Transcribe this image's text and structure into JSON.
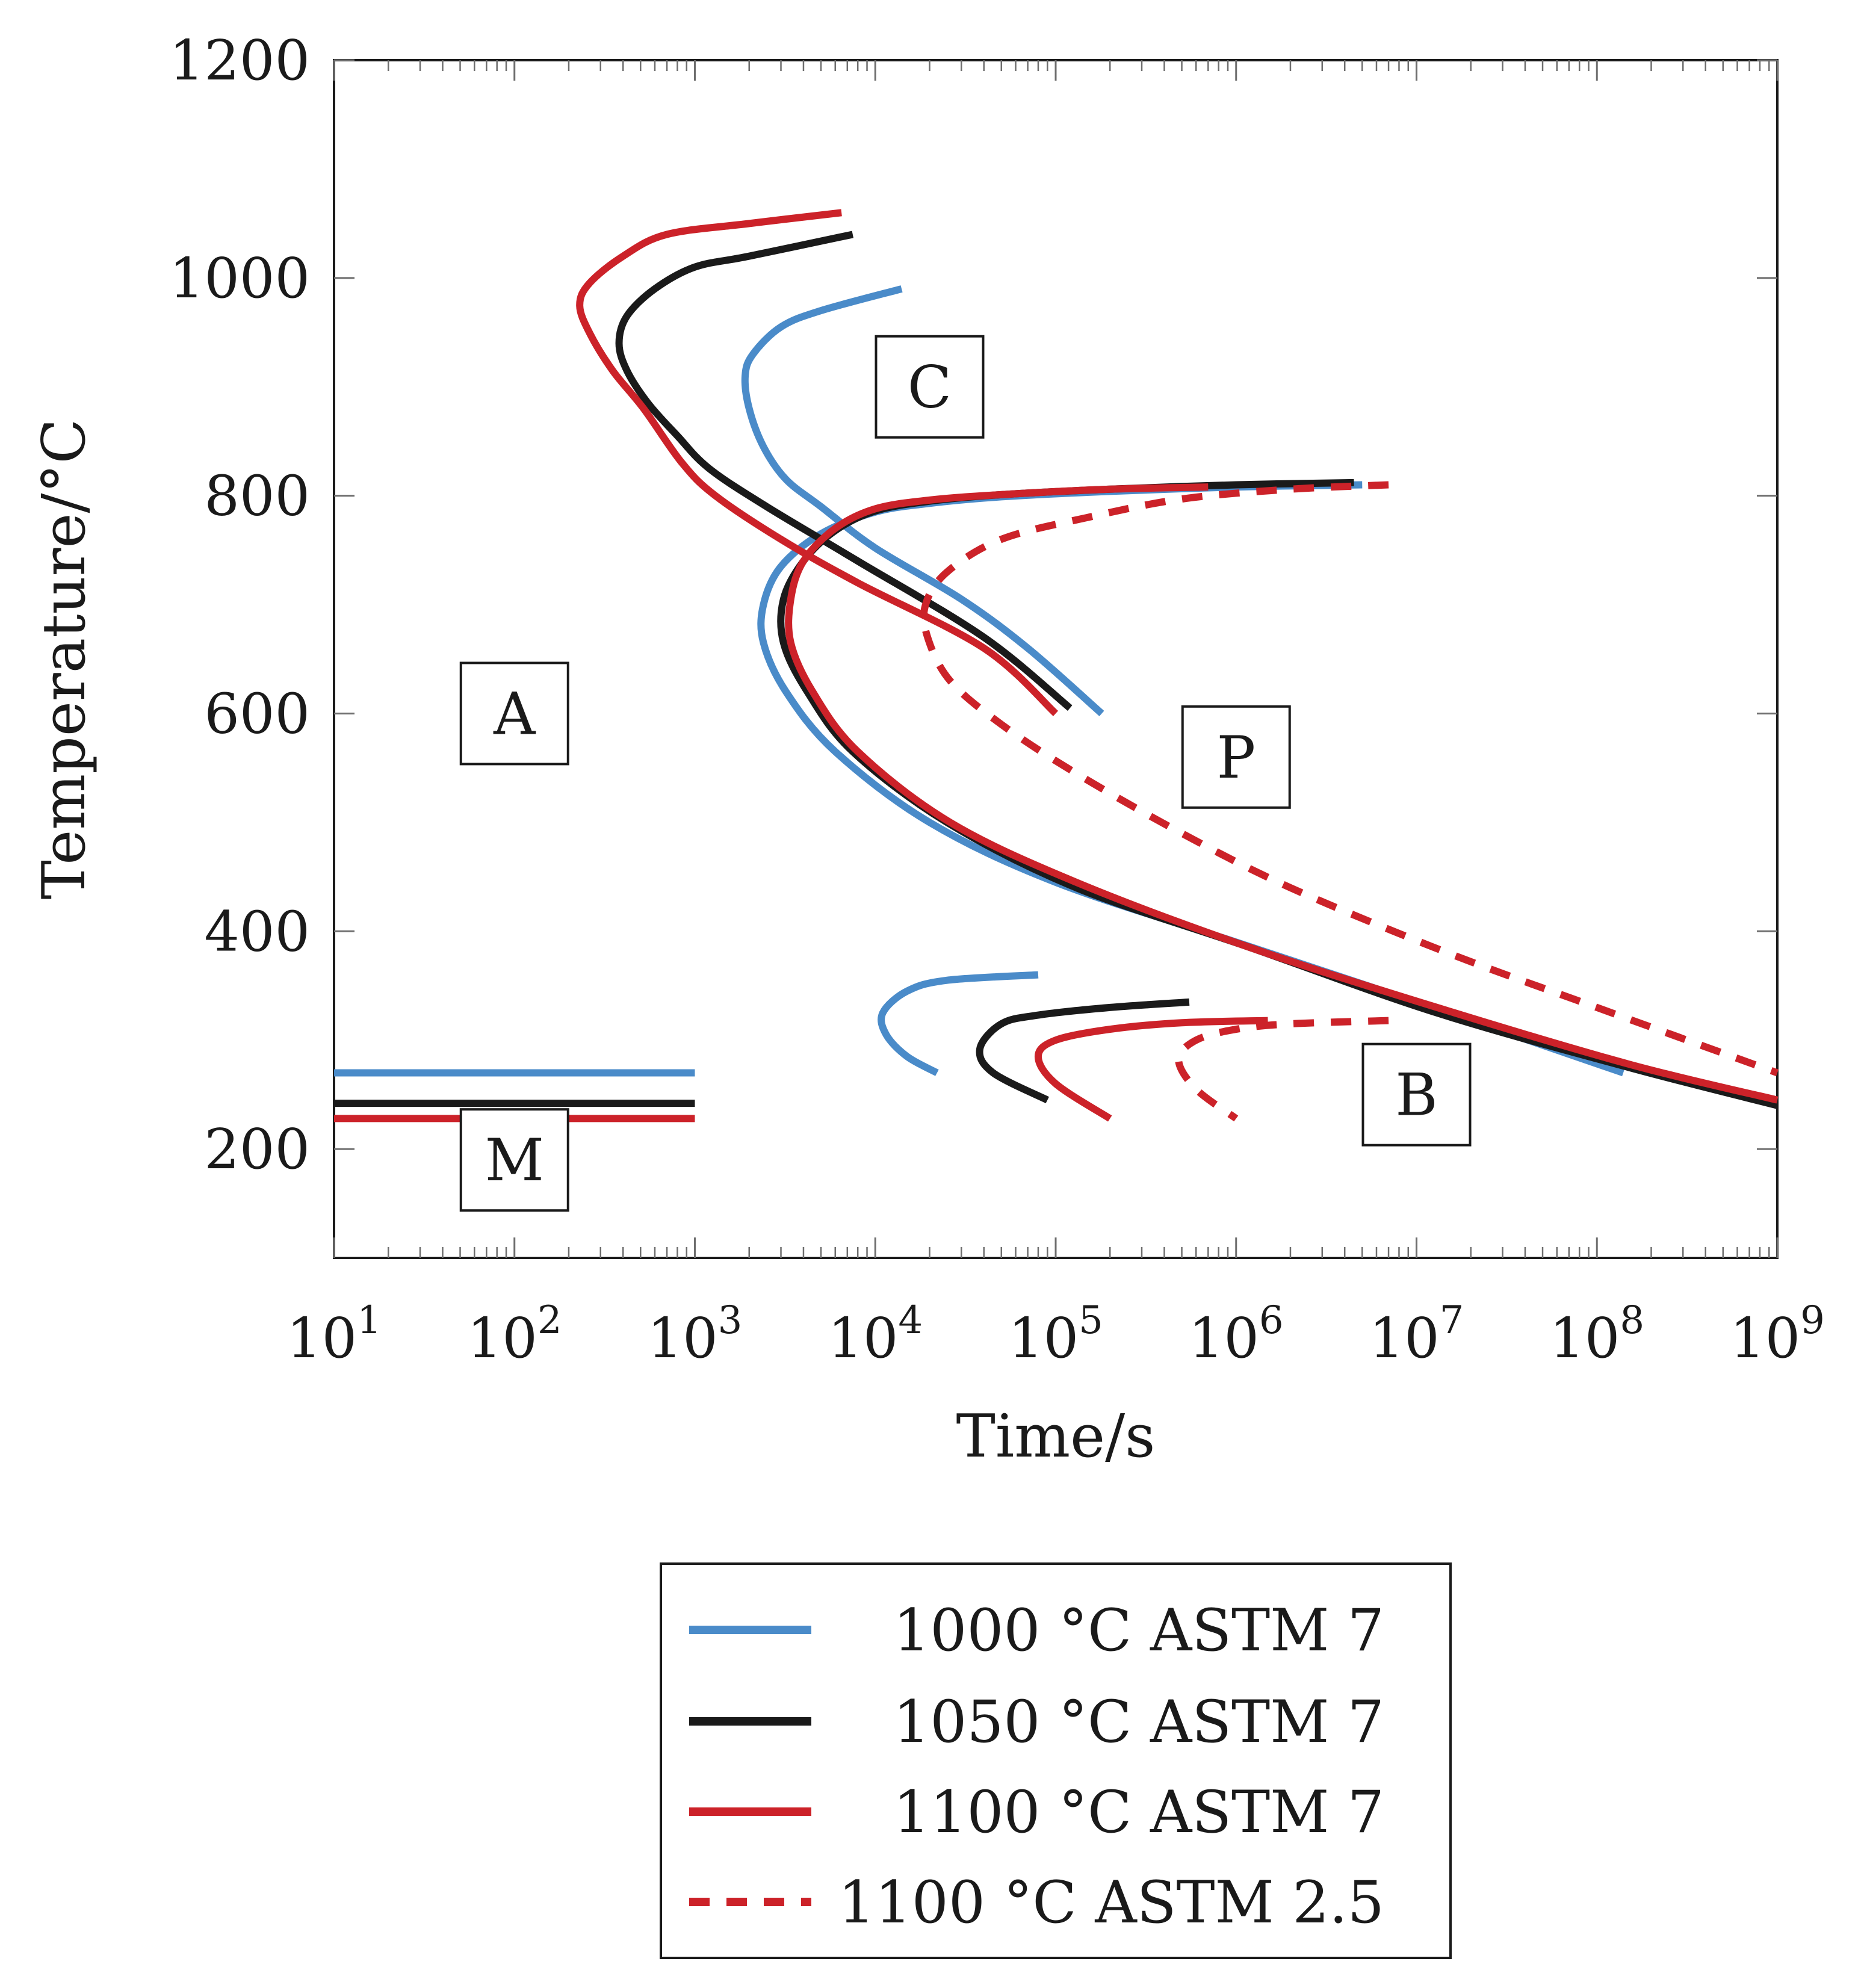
{
  "chart_data": {
    "type": "line",
    "xlabel": "Time/s",
    "ylabel": "Temperature/°C",
    "xscale": "log",
    "xlim": [
      10,
      1000000000
    ],
    "ylim": [
      100,
      1200
    ],
    "x_ticks": [
      {
        "value": 10,
        "base": "10",
        "exp": "1"
      },
      {
        "value": 100,
        "base": "10",
        "exp": "2"
      },
      {
        "value": 1000,
        "base": "10",
        "exp": "3"
      },
      {
        "value": 10000,
        "base": "10",
        "exp": "4"
      },
      {
        "value": 100000,
        "base": "10",
        "exp": "5"
      },
      {
        "value": 1000000,
        "base": "10",
        "exp": "6"
      },
      {
        "value": 10000000,
        "base": "10",
        "exp": "7"
      },
      {
        "value": 100000000,
        "base": "10",
        "exp": "8"
      },
      {
        "value": 1000000000,
        "base": "10",
        "exp": "9"
      }
    ],
    "y_ticks": [
      {
        "value": 200,
        "label": "200"
      },
      {
        "value": 400,
        "label": "400"
      },
      {
        "value": 600,
        "label": "600"
      },
      {
        "value": 800,
        "label": "800"
      },
      {
        "value": 1000,
        "label": "1000"
      },
      {
        "value": 1200,
        "label": "1200"
      }
    ],
    "grid": false,
    "legend_position": "below",
    "regions": [
      {
        "label": "C",
        "x": 20000,
        "y": 900
      },
      {
        "label": "A",
        "x": 100,
        "y": 600
      },
      {
        "label": "P",
        "x": 1000000,
        "y": 560
      },
      {
        "label": "B",
        "x": 10000000,
        "y": 250
      },
      {
        "label": "M",
        "x": 100,
        "y": 190
      }
    ],
    "series": [
      {
        "name": "1000 °C ASTM 7",
        "color": "#4a8bc9",
        "dash": false,
        "curves": [
          [
            [
              14000,
              990
            ],
            [
              5000,
              970
            ],
            [
              3000,
              955
            ],
            [
              2100,
              930
            ],
            [
              1900,
              910
            ],
            [
              2000,
              880
            ],
            [
              2400,
              845
            ],
            [
              3200,
              815
            ],
            [
              5000,
              790
            ],
            [
              10000,
              752
            ],
            [
              30000,
              705
            ],
            [
              70000,
              660
            ],
            [
              180000,
              600
            ]
          ],
          [
            [
              5000000,
              810
            ],
            [
              1000000,
              808
            ],
            [
              200000,
              804
            ],
            [
              50000,
              799
            ],
            [
              20000,
              793
            ],
            [
              10000,
              785
            ],
            [
              5000,
              765
            ],
            [
              3000,
              735
            ],
            [
              2400,
              700
            ],
            [
              2400,
              665
            ],
            [
              3200,
              620
            ],
            [
              6000,
              565
            ],
            [
              20000,
              500
            ],
            [
              100000,
              445
            ],
            [
              1000000,
              390
            ],
            [
              10000000,
              335
            ],
            [
              140000000,
              270
            ]
          ],
          [
            [
              80000,
              360
            ],
            [
              25000,
              355
            ],
            [
              15000,
              345
            ],
            [
              11000,
              325
            ],
            [
              11500,
              305
            ],
            [
              15000,
              285
            ],
            [
              22000,
              270
            ]
          ],
          [
            [
              10,
              270
            ],
            [
              1000,
              270
            ]
          ]
        ]
      },
      {
        "name": "1050 °C ASTM 7",
        "color": "#1a1a1a",
        "dash": false,
        "curves": [
          [
            [
              7500,
              1040
            ],
            [
              2000,
              1020
            ],
            [
              1000,
              1010
            ],
            [
              600,
              990
            ],
            [
              420,
              965
            ],
            [
              380,
              940
            ],
            [
              420,
              915
            ],
            [
              550,
              885
            ],
            [
              800,
              855
            ],
            [
              1200,
              825
            ],
            [
              2500,
              790
            ],
            [
              8000,
              740
            ],
            [
              40000,
              670
            ],
            [
              120000,
              605
            ]
          ],
          [
            [
              4500000,
              812
            ],
            [
              1000000,
              810
            ],
            [
              200000,
              806
            ],
            [
              50000,
              801
            ],
            [
              20000,
              795
            ],
            [
              10000,
              786
            ],
            [
              6000,
              768
            ],
            [
              4000,
              740
            ],
            [
              3100,
              705
            ],
            [
              3100,
              665
            ],
            [
              4200,
              620
            ],
            [
              7500,
              565
            ],
            [
              25000,
              500
            ],
            [
              130000,
              440
            ],
            [
              1200000,
              385
            ],
            [
              13000000,
              325
            ],
            [
              150000000,
              275
            ],
            [
              1000000000,
              240
            ]
          ],
          [
            [
              550000,
              335
            ],
            [
              200000,
              330
            ],
            [
              80000,
              323
            ],
            [
              50000,
              315
            ],
            [
              38000,
              292
            ],
            [
              45000,
              270
            ],
            [
              90000,
              245
            ]
          ],
          [
            [
              10,
              242
            ],
            [
              1000,
              242
            ]
          ]
        ]
      },
      {
        "name": "1100 °C ASTM 7",
        "color": "#cc2229",
        "dash": false,
        "curves": [
          [
            [
              6500,
              1060
            ],
            [
              2000,
              1050
            ],
            [
              700,
              1040
            ],
            [
              400,
              1020
            ],
            [
              260,
              995
            ],
            [
              230,
              975
            ],
            [
              260,
              950
            ],
            [
              350,
              915
            ],
            [
              520,
              880
            ],
            [
              850,
              830
            ],
            [
              1300,
              800
            ],
            [
              3000,
              760
            ],
            [
              8000,
              720
            ],
            [
              40000,
              660
            ],
            [
              100000,
              600
            ]
          ],
          [
            [
              700000,
              808
            ],
            [
              200000,
              806
            ],
            [
              50000,
              801
            ],
            [
              20000,
              796
            ],
            [
              10000,
              788
            ],
            [
              6000,
              770
            ],
            [
              4000,
              740
            ],
            [
              3400,
              705
            ],
            [
              3400,
              665
            ],
            [
              4500,
              620
            ],
            [
              8000,
              565
            ],
            [
              26000,
              500
            ],
            [
              130000,
              445
            ],
            [
              1200000,
              385
            ],
            [
              13000000,
              330
            ],
            [
              150000000,
              278
            ],
            [
              1000000000,
              245
            ]
          ],
          [
            [
              1500000,
              318
            ],
            [
              500000,
              316
            ],
            [
              200000,
              310
            ],
            [
              100000,
              300
            ],
            [
              80000,
              285
            ],
            [
              100000,
              260
            ],
            [
              200000,
              228
            ]
          ],
          [
            [
              10,
              228
            ],
            [
              1000,
              228
            ]
          ]
        ]
      },
      {
        "name": "1100 °C ASTM 2.5",
        "color": "#cc2229",
        "dash": true,
        "curves": [
          [
            [
              7000000,
              810
            ],
            [
              2000000,
              806
            ],
            [
              500000,
              797
            ],
            [
              150000,
              780
            ],
            [
              50000,
              760
            ],
            [
              25000,
              730
            ],
            [
              19000,
              700
            ],
            [
              19500,
              670
            ],
            [
              26000,
              630
            ],
            [
              50000,
              590
            ],
            [
              130000,
              545
            ],
            [
              500000,
              490
            ],
            [
              2000000,
              440
            ],
            [
              15000000,
              380
            ],
            [
              100000000,
              330
            ],
            [
              1000000000,
              270
            ]
          ],
          [
            [
              7000000,
              318
            ],
            [
              2000000,
              315
            ],
            [
              1000000,
              310
            ],
            [
              600000,
              300
            ],
            [
              480000,
              282
            ],
            [
              600000,
              255
            ],
            [
              1000000,
              228
            ]
          ]
        ]
      }
    ]
  }
}
